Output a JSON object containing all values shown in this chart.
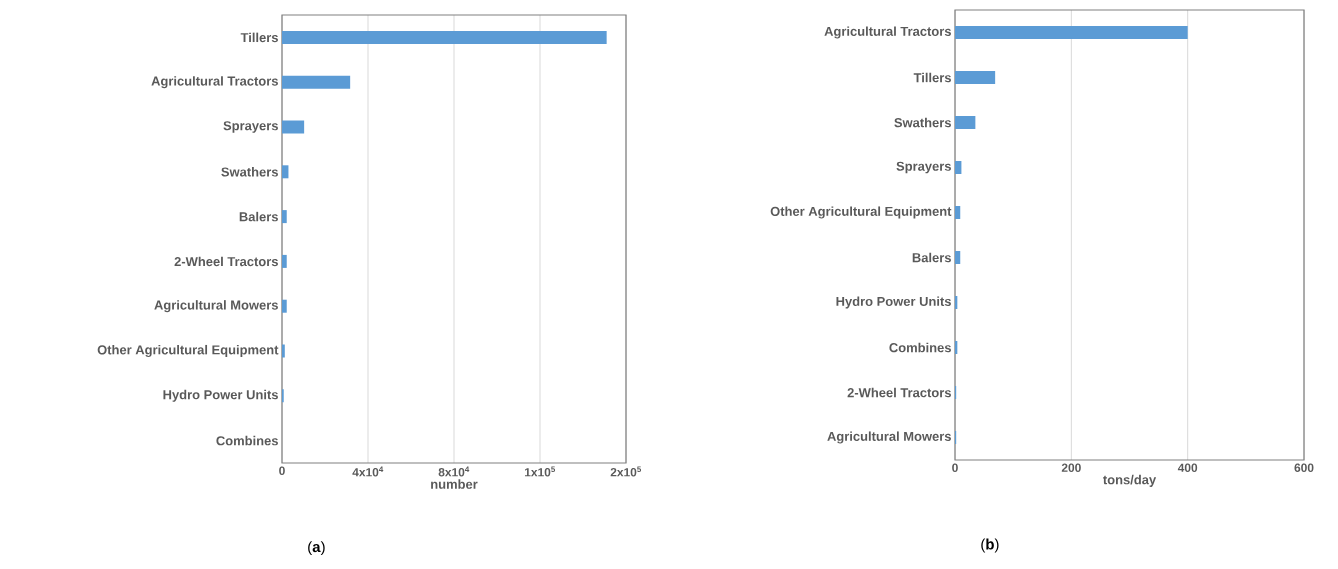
{
  "chart_data": [
    {
      "type": "bar",
      "orientation": "horizontal",
      "categories": [
        "Tillers",
        "Agricultural Tractors",
        "Sprayers",
        "Swathers",
        "Balers",
        "2-Wheel Tractors",
        "Agricultural Mowers",
        "Other Agricultural Equipment",
        "Hydro Power Units",
        "Combines"
      ],
      "values": [
        151000,
        31700,
        10300,
        3000,
        2200,
        2200,
        2200,
        1300,
        800,
        0
      ],
      "color": "#5b9bd5",
      "xlabel": "number",
      "xlim": [
        0,
        160000
      ],
      "xticks": [
        0,
        {
          "value": 40000,
          "label": "4x10$^{4}$"
        },
        {
          "value": 80000,
          "label": "8x10$^{4}$"
        },
        {
          "value": 120000,
          "label": "1x10$^{5}$"
        },
        {
          "value": 160000,
          "label": "2x10$^{5}$"
        }
      ],
      "grid": "x",
      "annotations": [
        "(**a**)"
      ]
    },
    {
      "type": "bar",
      "orientation": "horizontal",
      "categories": [
        "Agricultural Tractors",
        "Tillers",
        "Swathers",
        "Sprayers",
        "Other Agricultural Equipment",
        "Balers",
        "Hydro Power Units",
        "Combines",
        "2-Wheel Tractors",
        "Agricultural Mowers"
      ],
      "values": [
        400,
        69,
        35,
        11,
        9,
        9,
        4,
        4,
        2,
        2
      ],
      "color": "#5b9bd5",
      "xlabel": "tons/day",
      "xlim": [
        0,
        600
      ],
      "xticks": [
        0,
        200,
        400,
        600
      ],
      "grid": "x",
      "annotations": [
        "(**b**)"
      ]
    }
  ]
}
